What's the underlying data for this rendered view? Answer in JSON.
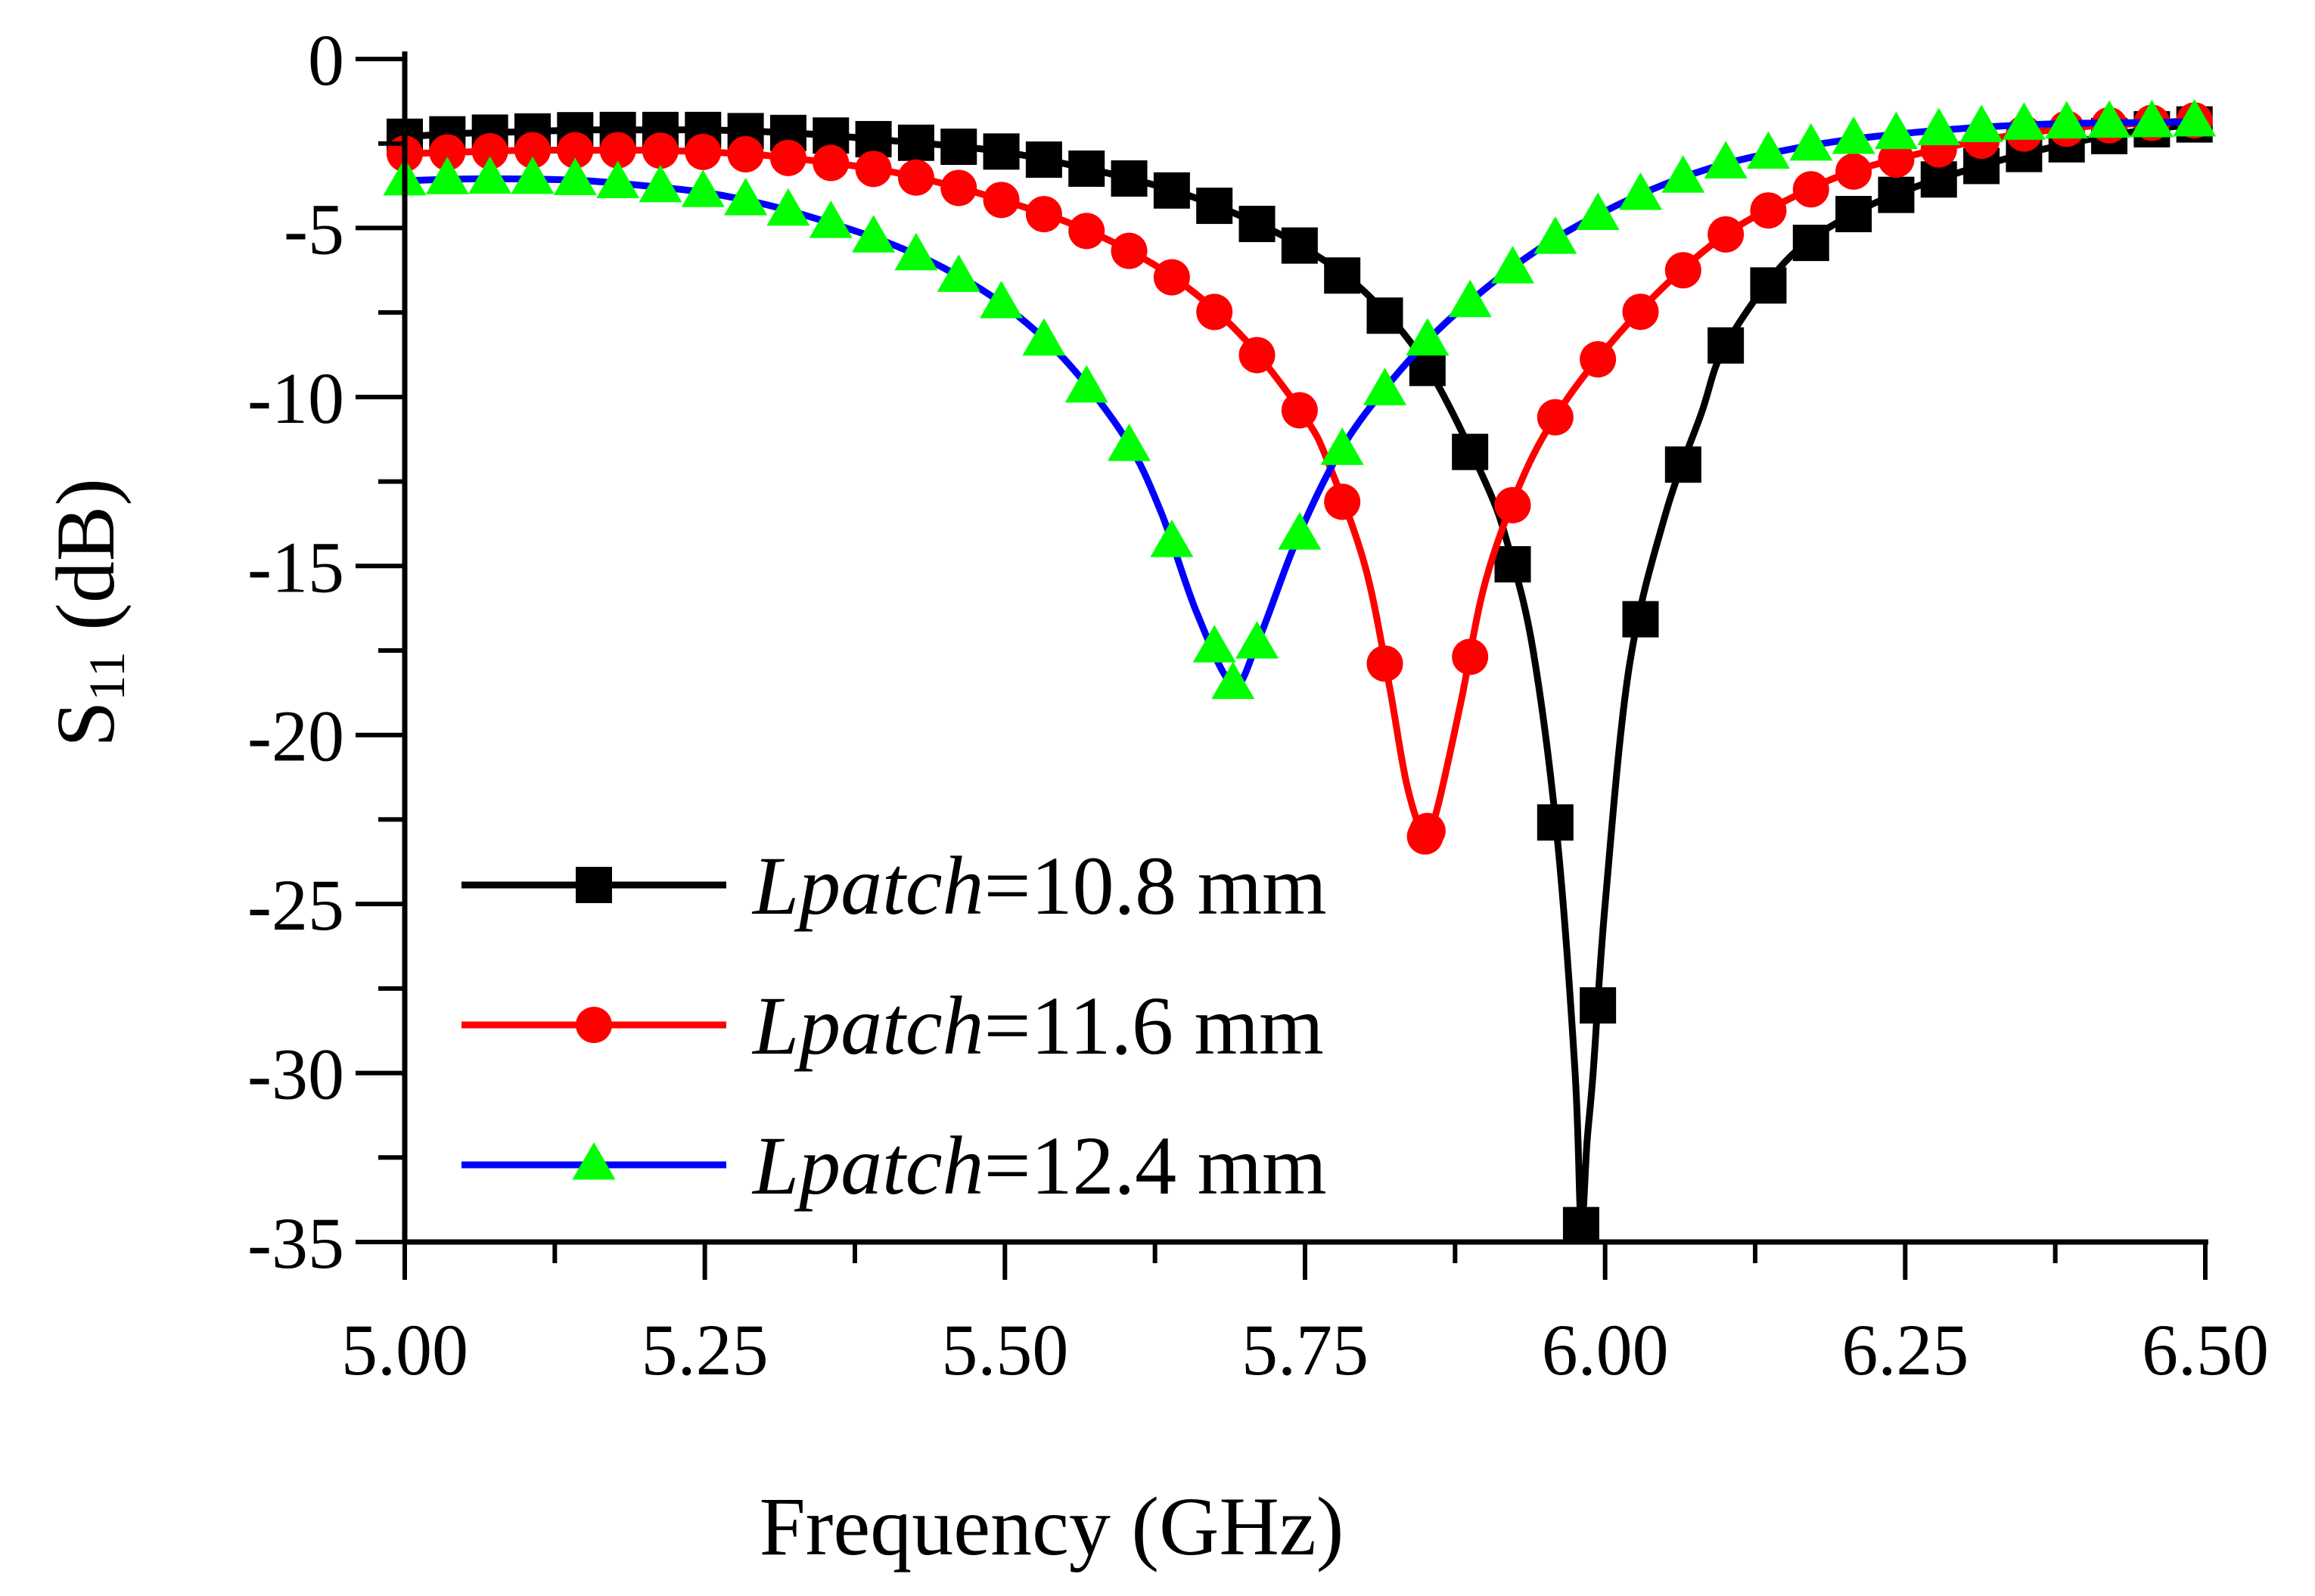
{
  "chart_data": {
    "type": "line",
    "xlabel": "Frequency (GHz)",
    "ylabel": {
      "main": "S",
      "sub": "11",
      "unit": " (dB)"
    },
    "xlim": [
      5.0,
      6.5
    ],
    "ylim": [
      -35,
      0
    ],
    "xticks": [
      5.0,
      5.25,
      5.5,
      5.75,
      6.0,
      6.25,
      6.5
    ],
    "xtick_labels": [
      "5.00",
      "5.25",
      "5.50",
      "5.75",
      "6.00",
      "6.25",
      "6.50"
    ],
    "yticks": [
      0,
      -5,
      -10,
      -15,
      -20,
      -25,
      -30,
      -35
    ],
    "ytick_labels": [
      "0",
      "-5",
      "-10",
      "-15",
      "-20",
      "-25",
      "-30",
      "-35"
    ],
    "legend_position": "bottom-left",
    "series": [
      {
        "name": "Lpatch=10.8 mm",
        "legend_italic": "Lpatch",
        "legend_rest": "=10.8 mm",
        "color": "#000000",
        "marker": "square",
        "min": {
          "x": 5.98,
          "y": -34.5
        },
        "points": [
          [
            5.0,
            -2.3
          ],
          [
            5.05,
            -2.2
          ],
          [
            5.1,
            -2.15
          ],
          [
            5.15,
            -2.1
          ],
          [
            5.2,
            -2.1
          ],
          [
            5.25,
            -2.1
          ],
          [
            5.3,
            -2.15
          ],
          [
            5.35,
            -2.25
          ],
          [
            5.4,
            -2.4
          ],
          [
            5.45,
            -2.55
          ],
          [
            5.5,
            -2.75
          ],
          [
            5.55,
            -3.1
          ],
          [
            5.6,
            -3.5
          ],
          [
            5.65,
            -4.0
          ],
          [
            5.7,
            -4.7
          ],
          [
            5.75,
            -5.6
          ],
          [
            5.8,
            -6.9
          ],
          [
            5.85,
            -9.0
          ],
          [
            5.9,
            -12.5
          ],
          [
            5.92,
            -14.5
          ],
          [
            5.94,
            -17.5
          ],
          [
            5.96,
            -23.0
          ],
          [
            5.975,
            -30.0
          ],
          [
            5.98,
            -34.5
          ],
          [
            5.985,
            -32.0
          ],
          [
            5.99,
            -30.0
          ],
          [
            6.0,
            -25.0
          ],
          [
            6.02,
            -18.0
          ],
          [
            6.05,
            -13.5
          ],
          [
            6.08,
            -10.5
          ],
          [
            6.1,
            -8.5
          ],
          [
            6.15,
            -6.0
          ],
          [
            6.2,
            -4.7
          ],
          [
            6.25,
            -3.9
          ],
          [
            6.3,
            -3.3
          ],
          [
            6.35,
            -2.8
          ],
          [
            6.4,
            -2.4
          ],
          [
            6.45,
            -2.1
          ],
          [
            6.5,
            -1.9
          ]
        ]
      },
      {
        "name": "Lpatch=11.6 mm",
        "legend_italic": "Lpatch",
        "legend_rest": "=11.6 mm",
        "color": "#ff0000",
        "marker": "circle",
        "min": {
          "x": 5.85,
          "y": -23.0
        },
        "points": [
          [
            5.0,
            -2.8
          ],
          [
            5.05,
            -2.75
          ],
          [
            5.1,
            -2.7
          ],
          [
            5.15,
            -2.7
          ],
          [
            5.2,
            -2.7
          ],
          [
            5.25,
            -2.75
          ],
          [
            5.3,
            -2.85
          ],
          [
            5.35,
            -3.05
          ],
          [
            5.4,
            -3.3
          ],
          [
            5.45,
            -3.7
          ],
          [
            5.5,
            -4.2
          ],
          [
            5.55,
            -4.8
          ],
          [
            5.6,
            -5.6
          ],
          [
            5.65,
            -6.7
          ],
          [
            5.7,
            -8.3
          ],
          [
            5.75,
            -10.6
          ],
          [
            5.77,
            -12.0
          ],
          [
            5.8,
            -15.0
          ],
          [
            5.82,
            -18.5
          ],
          [
            5.835,
            -21.5
          ],
          [
            5.85,
            -23.0
          ],
          [
            5.86,
            -22.2
          ],
          [
            5.88,
            -19.0
          ],
          [
            5.9,
            -15.5
          ],
          [
            5.93,
            -12.5
          ],
          [
            5.96,
            -10.5
          ],
          [
            6.0,
            -8.6
          ],
          [
            6.05,
            -6.7
          ],
          [
            6.1,
            -5.2
          ],
          [
            6.15,
            -4.2
          ],
          [
            6.2,
            -3.4
          ],
          [
            6.25,
            -2.9
          ],
          [
            6.3,
            -2.5
          ],
          [
            6.35,
            -2.2
          ],
          [
            6.4,
            -2.0
          ],
          [
            6.45,
            -1.9
          ],
          [
            6.5,
            -1.8
          ]
        ]
      },
      {
        "name": "Lpatch=12.4 mm",
        "legend_italic": "Lpatch",
        "legend_rest": "=12.4 mm",
        "color": "#0000ff",
        "marker_fill": "#00ff00",
        "marker": "triangle",
        "min": {
          "x": 5.69,
          "y": -18.5
        },
        "points": [
          [
            5.0,
            -3.6
          ],
          [
            5.05,
            -3.55
          ],
          [
            5.1,
            -3.55
          ],
          [
            5.15,
            -3.6
          ],
          [
            5.2,
            -3.75
          ],
          [
            5.25,
            -3.95
          ],
          [
            5.3,
            -4.3
          ],
          [
            5.35,
            -4.8
          ],
          [
            5.4,
            -5.4
          ],
          [
            5.45,
            -6.2
          ],
          [
            5.5,
            -7.3
          ],
          [
            5.55,
            -8.9
          ],
          [
            5.6,
            -11.2
          ],
          [
            5.63,
            -13.4
          ],
          [
            5.66,
            -16.4
          ],
          [
            5.69,
            -18.5
          ],
          [
            5.71,
            -17.3
          ],
          [
            5.74,
            -14.5
          ],
          [
            5.77,
            -12.2
          ],
          [
            5.8,
            -10.5
          ],
          [
            5.85,
            -8.4
          ],
          [
            5.9,
            -6.8
          ],
          [
            5.95,
            -5.5
          ],
          [
            6.0,
            -4.5
          ],
          [
            6.05,
            -3.7
          ],
          [
            6.1,
            -3.1
          ],
          [
            6.15,
            -2.7
          ],
          [
            6.2,
            -2.4
          ],
          [
            6.25,
            -2.2
          ],
          [
            6.3,
            -2.05
          ],
          [
            6.35,
            -1.95
          ],
          [
            6.4,
            -1.9
          ],
          [
            6.45,
            -1.88
          ],
          [
            6.5,
            -1.85
          ]
        ]
      }
    ]
  }
}
